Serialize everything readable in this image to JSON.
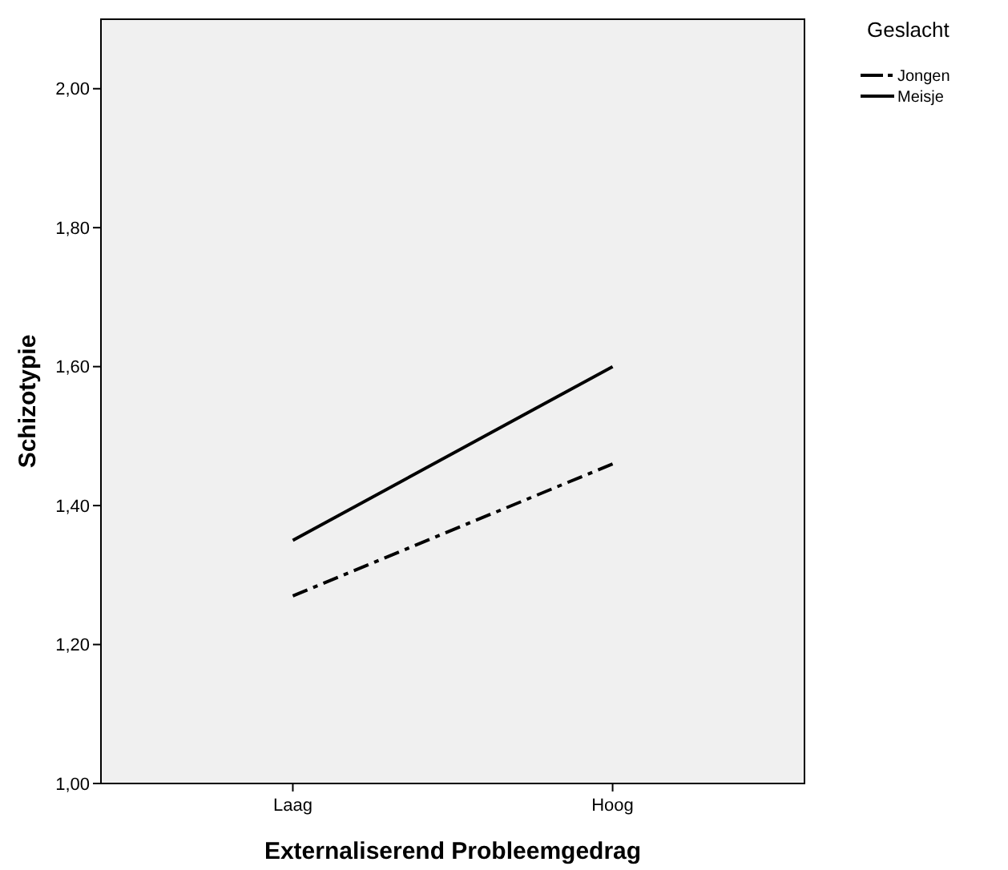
{
  "chart_data": {
    "type": "line",
    "xlabel": "Externaliserend Probleemgedrag",
    "ylabel": "Schizotypie",
    "legend_title": "Geslacht",
    "legend": "top right",
    "categories": [
      "Laag",
      "Hoog"
    ],
    "ylim": [
      1,
      2.1
    ],
    "yticks": [
      {
        "value": 1,
        "label": "1,00"
      },
      {
        "value": 1.2,
        "label": "1,20"
      },
      {
        "value": 1.4,
        "label": "1,40"
      },
      {
        "value": 1.6,
        "label": "1,60"
      },
      {
        "value": 1.8,
        "label": "1,80"
      },
      {
        "value": 2,
        "label": "2,00"
      }
    ],
    "grid": false,
    "marker": "none",
    "series": [
      {
        "name": "Jongen",
        "color": "#000000",
        "line_style": "dashed",
        "values": [
          1.27,
          1.46
        ]
      },
      {
        "name": "Meisje",
        "color": "#000000",
        "line_style": "solid",
        "values": [
          1.35,
          1.6
        ]
      }
    ]
  }
}
